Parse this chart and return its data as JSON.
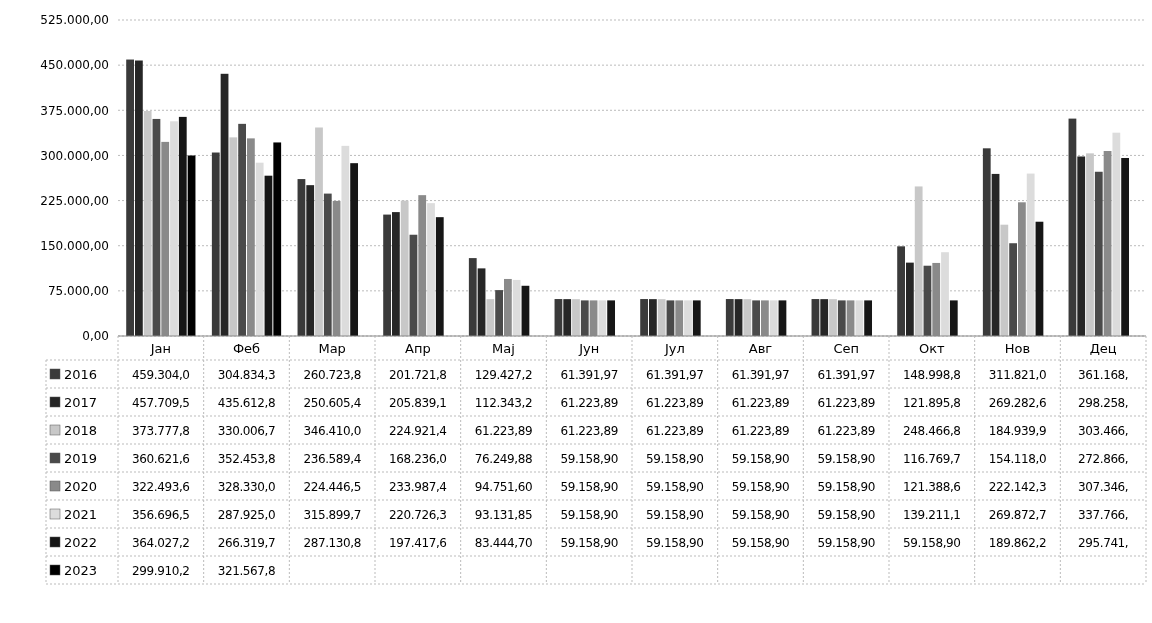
{
  "chart_data": {
    "type": "bar",
    "categories": [
      "Јан",
      "Феб",
      "Мар",
      "Апр",
      "Мај",
      "Јун",
      "Јул",
      "Авг",
      "Сеп",
      "Окт",
      "Нов",
      "Дец"
    ],
    "ylim": [
      0,
      525000
    ],
    "yticks": [
      {
        "value": 0,
        "label": "0,00"
      },
      {
        "value": 75000,
        "label": "75.000,00"
      },
      {
        "value": 150000,
        "label": "150.000,00"
      },
      {
        "value": 225000,
        "label": "225.000,00"
      },
      {
        "value": 300000,
        "label": "300.000,00"
      },
      {
        "value": 375000,
        "label": "375.000,00"
      },
      {
        "value": 450000,
        "label": "450.000,00"
      },
      {
        "value": 525000,
        "label": "525.000,00"
      }
    ],
    "grid": "y",
    "legend": "bottom left",
    "series": [
      {
        "name": "2016",
        "color": "#3a3a3a",
        "values": [
          459304.0,
          304834.3,
          260723.8,
          201721.8,
          129427.2,
          61391.97,
          61391.97,
          61391.97,
          61391.97,
          148998.8,
          311821.0,
          361168
        ],
        "value_labels": [
          "459.304,0",
          "304.834,3",
          "260.723,8",
          "201.721,8",
          "129.427,2",
          "61.391,97",
          "61.391,97",
          "61.391,97",
          "61.391,97",
          "148.998,8",
          "311.821,0",
          "361.168,"
        ]
      },
      {
        "name": "2017",
        "color": "#262626",
        "values": [
          457709.5,
          435612.8,
          250605.4,
          205839.1,
          112343.2,
          61223.89,
          61223.89,
          61223.89,
          61223.89,
          121895.8,
          269282.6,
          298258
        ],
        "value_labels": [
          "457.709,5",
          "435.612,8",
          "250.605,4",
          "205.839,1",
          "112.343,2",
          "61.223,89",
          "61.223,89",
          "61.223,89",
          "61.223,89",
          "121.895,8",
          "269.282,6",
          "298.258,"
        ]
      },
      {
        "name": "2018",
        "color": "#c8c8c8",
        "values": [
          373777.8,
          330006.7,
          346410.0,
          224921.4,
          61223.89,
          61223.89,
          61223.89,
          61223.89,
          61223.89,
          248466.8,
          184939.9,
          303466
        ],
        "value_labels": [
          "373.777,8",
          "330.006,7",
          "346.410,0",
          "224.921,4",
          "61.223,89",
          "61.223,89",
          "61.223,89",
          "61.223,89",
          "61.223,89",
          "248.466,8",
          "184.939,9",
          "303.466,"
        ]
      },
      {
        "name": "2019",
        "color": "#4a4a4a",
        "values": [
          360621.6,
          352453.8,
          236589.4,
          168236.0,
          76249.88,
          59158.9,
          59158.9,
          59158.9,
          59158.9,
          116769.7,
          154118.0,
          272866
        ],
        "value_labels": [
          "360.621,6",
          "352.453,8",
          "236.589,4",
          "168.236,0",
          "76.249,88",
          "59.158,90",
          "59.158,90",
          "59.158,90",
          "59.158,90",
          "116.769,7",
          "154.118,0",
          "272.866,"
        ]
      },
      {
        "name": "2020",
        "color": "#8a8a8a",
        "values": [
          322493.6,
          328330.0,
          224446.5,
          233987.4,
          94751.6,
          59158.9,
          59158.9,
          59158.9,
          59158.9,
          121388.6,
          222142.3,
          307346
        ],
        "value_labels": [
          "322.493,6",
          "328.330,0",
          "224.446,5",
          "233.987,4",
          "94.751,60",
          "59.158,90",
          "59.158,90",
          "59.158,90",
          "59.158,90",
          "121.388,6",
          "222.142,3",
          "307.346,"
        ]
      },
      {
        "name": "2021",
        "color": "#dcdcdc",
        "values": [
          356696.5,
          287925.0,
          315899.7,
          220726.3,
          93131.85,
          59158.9,
          59158.9,
          59158.9,
          59158.9,
          139211.1,
          269872.7,
          337766
        ],
        "value_labels": [
          "356.696,5",
          "287.925,0",
          "315.899,7",
          "220.726,3",
          "93.131,85",
          "59.158,90",
          "59.158,90",
          "59.158,90",
          "59.158,90",
          "139.211,1",
          "269.872,7",
          "337.766,"
        ]
      },
      {
        "name": "2022",
        "color": "#161616",
        "values": [
          364027.2,
          266319.7,
          287130.8,
          197417.6,
          83444.7,
          59158.9,
          59158.9,
          59158.9,
          59158.9,
          59158.9,
          189862.2,
          295741
        ],
        "value_labels": [
          "364.027,2",
          "266.319,7",
          "287.130,8",
          "197.417,6",
          "83.444,70",
          "59.158,90",
          "59.158,90",
          "59.158,90",
          "59.158,90",
          "59.158,90",
          "189.862,2",
          "295.741,"
        ]
      },
      {
        "name": "2023",
        "color": "#000000",
        "values": [
          299910.2,
          321567.8,
          null,
          null,
          null,
          null,
          null,
          null,
          null,
          null,
          null,
          null
        ],
        "value_labels": [
          "299.910,2",
          "321.567,8",
          null,
          null,
          null,
          null,
          null,
          null,
          null,
          null,
          null,
          null
        ]
      }
    ]
  }
}
